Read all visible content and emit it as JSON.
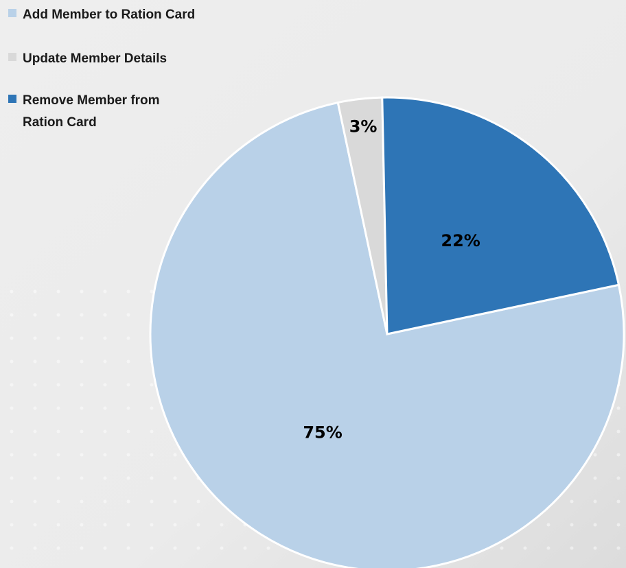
{
  "chart_data": {
    "type": "pie",
    "categories": [
      "Add Member to Ration Card",
      "Update Member Details",
      "Remove Member from Ration Card"
    ],
    "values": [
      75,
      3,
      22
    ],
    "value_labels": [
      "75%",
      "3%",
      "22%"
    ],
    "colors": [
      "#b9d1e8",
      "#d9d9d9",
      "#2e75b6"
    ],
    "legend": "top-left"
  }
}
